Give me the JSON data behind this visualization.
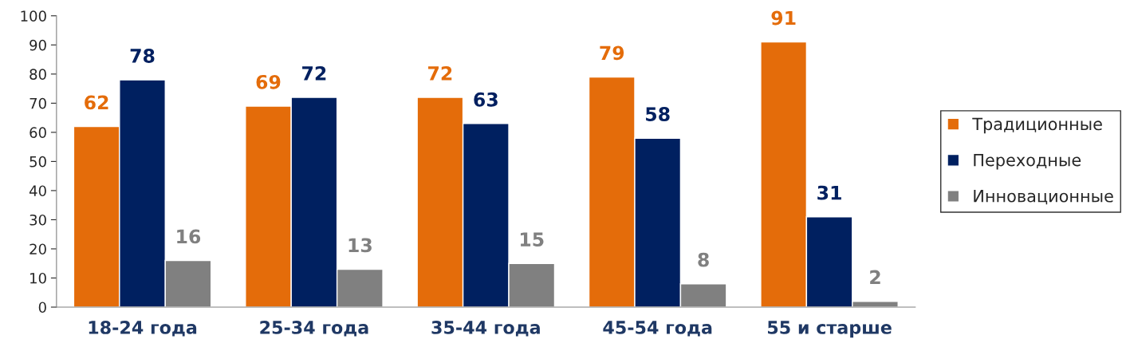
{
  "chart_data": {
    "type": "bar",
    "categories": [
      "18-24 года",
      "25-34 года",
      "35-44 года",
      "45-54 года",
      "55 и старше"
    ],
    "series": [
      {
        "name": "Традиционные",
        "color": "#e46c0a",
        "values": [
          62,
          69,
          72,
          79,
          91
        ]
      },
      {
        "name": "Переходные",
        "color": "#002060",
        "values": [
          78,
          72,
          63,
          58,
          31
        ]
      },
      {
        "name": "Инновационные",
        "color": "#808080",
        "values": [
          16,
          13,
          15,
          8,
          2
        ]
      }
    ],
    "ylim": [
      0,
      100
    ],
    "yticks": [
      0,
      10,
      20,
      30,
      40,
      50,
      60,
      70,
      80,
      90,
      100
    ],
    "data_labels": true,
    "legend": "right",
    "grid": false
  }
}
